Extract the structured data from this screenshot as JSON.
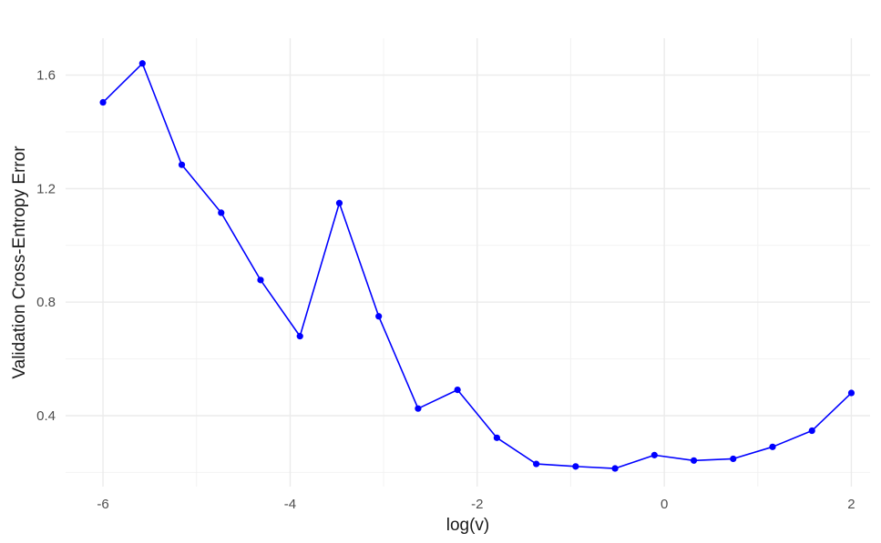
{
  "chart_data": {
    "type": "line",
    "title": "",
    "xlabel": "log(v)",
    "ylabel": "Validation Cross-Entropy Error",
    "xlim": [
      -6.4,
      2.2
    ],
    "ylim": [
      0.15,
      1.73
    ],
    "x_ticks": [
      -6,
      -4,
      -2,
      0,
      2
    ],
    "x_tick_labels": [
      "-6",
      "-4",
      "-2",
      "0",
      "2"
    ],
    "y_ticks": [
      0.4,
      0.8,
      1.2,
      1.6
    ],
    "y_tick_labels": [
      "0.4",
      "0.8",
      "1.2",
      "1.6"
    ],
    "grid": true,
    "series": [
      {
        "color": "#0000ff",
        "x": [
          -6.0,
          -5.5789,
          -5.1579,
          -4.7368,
          -4.3158,
          -3.8947,
          -3.4737,
          -3.0526,
          -2.6316,
          -2.2105,
          -1.7895,
          -1.3684,
          -0.9474,
          -0.5263,
          -0.1053,
          0.3158,
          0.7368,
          1.1579,
          1.5789,
          2.0
        ],
        "y": [
          1.504,
          1.641,
          1.284,
          1.115,
          0.878,
          0.68,
          1.149,
          0.75,
          0.425,
          0.491,
          0.322,
          0.23,
          0.221,
          0.214,
          0.261,
          0.242,
          0.248,
          0.29,
          0.347,
          0.48
        ]
      }
    ]
  }
}
